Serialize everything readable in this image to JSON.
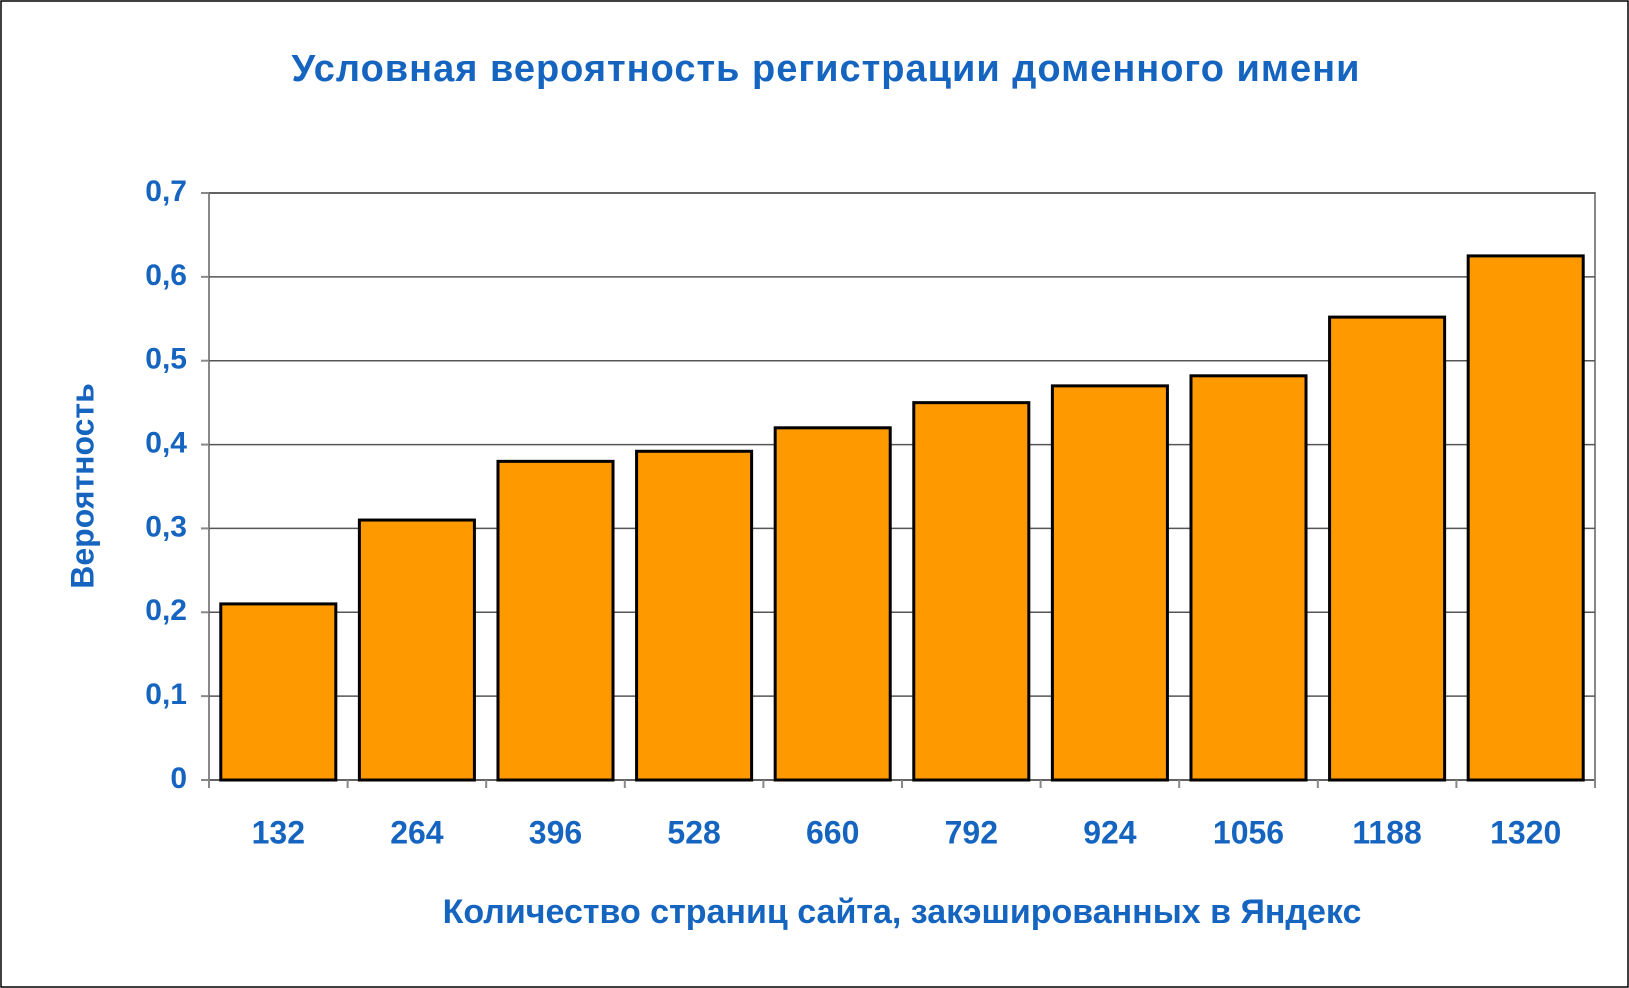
{
  "chart_data": {
    "type": "bar",
    "title": "Условная вероятность регистрации доменного имени",
    "x_label": "Количество страниц сайта, закэшированных в Яндекс",
    "y_label": "Вероятность",
    "categories": [
      "132",
      "264",
      "396",
      "528",
      "660",
      "792",
      "924",
      "1056",
      "1188",
      "1320"
    ],
    "values": [
      0.21,
      0.31,
      0.38,
      0.392,
      0.42,
      0.45,
      0.47,
      0.482,
      0.552,
      0.625
    ],
    "color": "#ff9900",
    "ylim": [
      0,
      0.7
    ],
    "yticks": [
      0,
      {
        "value": 0.1,
        "label": "0,1"
      },
      {
        "value": 0.2,
        "label": "0,2"
      },
      {
        "value": 0.3,
        "label": "0,3"
      },
      {
        "value": 0.4,
        "label": "0,4"
      },
      {
        "value": 0.5,
        "label": "0,5"
      },
      {
        "value": 0.6,
        "label": "0,6"
      },
      {
        "value": 0.7,
        "label": "0,7"
      }
    ],
    "grid": true
  }
}
